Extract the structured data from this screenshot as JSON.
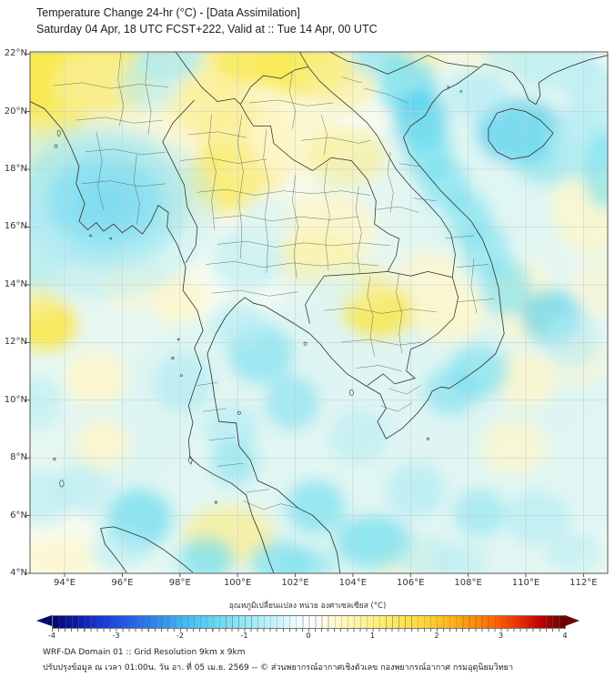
{
  "header": {
    "title": "Temperature Change 24-hr (°C) - [Data Assimilation]",
    "subtitle": "Saturday 04 Apr, 18 UTC FCST+222, Valid at :: Tue 14 Apr, 00 UTC"
  },
  "map": {
    "extent": {
      "lon_min": 92.8,
      "lon_max": 112.84,
      "lat_min": 4.0,
      "lat_max": 22.07
    },
    "lon_ticks": [
      94,
      96,
      98,
      100,
      102,
      104,
      106,
      108,
      110,
      112
    ],
    "lat_ticks": [
      4,
      6,
      8,
      10,
      12,
      14,
      16,
      18,
      20,
      22
    ],
    "lon_suffix": "°E",
    "lat_suffix": "°N",
    "grid_color": "#c3cfce",
    "base_color": "#f6fbf1",
    "palette": {
      "py": "#fdf7cd",
      "y2": "#f9ef97",
      "y3": "#f8e94e",
      "y4": "#f2d72e",
      "pc": "#dcf5f2",
      "c2": "#b4ecf3",
      "c3": "#72dff0",
      "c4": "#3ac8ec",
      "b1": "#1fa2ee",
      "b2": "#0c74e4"
    },
    "anomaly_features": [
      [
        97.0,
        19.5,
        5.5,
        3.6,
        "py",
        0.75
      ],
      [
        104.0,
        8.0,
        10.0,
        5.5,
        "pc",
        0.8
      ],
      [
        108.0,
        14.0,
        6.5,
        6.0,
        "pc",
        0.65
      ],
      [
        95.0,
        11.0,
        4.0,
        4.5,
        "pc",
        0.6
      ],
      [
        110.0,
        19.0,
        4.0,
        3.5,
        "pc",
        0.7
      ],
      [
        94.9,
        21.5,
        2.3,
        1.4,
        "y3",
        0.9
      ],
      [
        93.2,
        21.2,
        1.2,
        1.4,
        "y3",
        0.85
      ],
      [
        93.6,
        20.1,
        1.3,
        1.0,
        "y3",
        0.8
      ],
      [
        96.4,
        21.9,
        1.5,
        0.9,
        "y3",
        0.8
      ],
      [
        95.3,
        20.9,
        1.7,
        1.2,
        "y2",
        0.8
      ],
      [
        93.1,
        18.9,
        0.9,
        1.1,
        "y2",
        0.5
      ],
      [
        99.3,
        21.4,
        1.5,
        1.0,
        "y2",
        0.75
      ],
      [
        100.7,
        21.8,
        1.6,
        0.9,
        "y3",
        0.7
      ],
      [
        102.3,
        21.5,
        1.7,
        1.0,
        "y3",
        0.75
      ],
      [
        103.6,
        20.9,
        1.2,
        0.9,
        "y2",
        0.6
      ],
      [
        98.9,
        20.1,
        1.3,
        0.9,
        "y2",
        0.7
      ],
      [
        100.2,
        19.2,
        1.6,
        1.2,
        "y2",
        0.8
      ],
      [
        99.7,
        17.7,
        1.4,
        1.2,
        "y3",
        0.7
      ],
      [
        100.7,
        18.3,
        1.3,
        1.0,
        "y2",
        0.7
      ],
      [
        102.0,
        19.0,
        1.6,
        1.2,
        "py",
        0.85
      ],
      [
        103.8,
        18.4,
        1.4,
        1.0,
        "y2",
        0.65
      ],
      [
        103.0,
        15.9,
        1.8,
        1.3,
        "py",
        0.95
      ],
      [
        102.8,
        14.9,
        1.4,
        0.9,
        "y2",
        0.5
      ],
      [
        104.9,
        13.05,
        1.3,
        0.95,
        "y3",
        0.85
      ],
      [
        104.4,
        13.9,
        1.1,
        0.8,
        "y2",
        0.6
      ],
      [
        93.35,
        12.6,
        1.15,
        0.95,
        "y3",
        0.9
      ],
      [
        92.9,
        13.7,
        0.9,
        1.0,
        "y2",
        0.6
      ],
      [
        97.9,
        13.5,
        0.95,
        0.85,
        "py",
        0.9
      ],
      [
        95.1,
        10.75,
        1.05,
        0.95,
        "py",
        0.95
      ],
      [
        95.3,
        8.5,
        0.95,
        0.85,
        "py",
        0.9
      ],
      [
        99.7,
        5.3,
        1.6,
        1.05,
        "y2",
        0.8
      ],
      [
        107.3,
        13.1,
        1.3,
        1.1,
        "py",
        0.9
      ],
      [
        106.6,
        14.3,
        1.1,
        0.9,
        "py",
        0.75
      ],
      [
        109.9,
        13.4,
        1.1,
        1.4,
        "py",
        0.8
      ],
      [
        110.0,
        10.7,
        1.1,
        0.95,
        "py",
        0.85
      ],
      [
        109.6,
        8.4,
        1.15,
        0.95,
        "py",
        0.8
      ],
      [
        112.3,
        16.7,
        1.4,
        1.6,
        "py",
        0.85
      ],
      [
        106.1,
        21.9,
        1.1,
        0.7,
        "y2",
        0.6
      ],
      [
        108.9,
        22.0,
        1.4,
        0.6,
        "py",
        0.7
      ],
      [
        96.2,
        13.9,
        0.85,
        0.75,
        "py",
        0.7
      ],
      [
        93.8,
        4.5,
        1.3,
        0.8,
        "py",
        0.75
      ],
      [
        105.8,
        4.4,
        1.2,
        0.7,
        "py",
        0.6
      ],
      [
        111.9,
        11.4,
        0.9,
        0.9,
        "py",
        0.6
      ],
      [
        112.5,
        13.9,
        0.9,
        1.0,
        "py",
        0.6
      ],
      [
        95.45,
        16.85,
        0.55,
        0.42,
        "b2",
        0.8
      ],
      [
        95.45,
        16.85,
        1.15,
        0.9,
        "b1",
        0.75
      ],
      [
        95.4,
        16.9,
        2.0,
        1.55,
        "c4",
        0.7
      ],
      [
        95.3,
        16.9,
        3.0,
        2.3,
        "c3",
        0.55
      ],
      [
        95.1,
        16.6,
        4.2,
        3.1,
        "c2",
        0.45
      ],
      [
        97.6,
        21.9,
        1.2,
        0.9,
        "c2",
        0.85
      ],
      [
        96.9,
        20.9,
        1.0,
        0.9,
        "c2",
        0.6
      ],
      [
        104.9,
        21.95,
        0.95,
        0.7,
        "c3",
        0.6
      ],
      [
        105.9,
        20.9,
        1.05,
        1.0,
        "c3",
        0.75
      ],
      [
        106.35,
        19.7,
        0.95,
        1.05,
        "c4",
        0.6
      ],
      [
        106.6,
        18.6,
        0.85,
        1.05,
        "c3",
        0.7
      ],
      [
        107.2,
        17.4,
        0.85,
        1.0,
        "c3",
        0.6
      ],
      [
        107.95,
        16.3,
        0.85,
        0.95,
        "c3",
        0.6
      ],
      [
        108.6,
        15.2,
        0.85,
        0.95,
        "c3",
        0.55
      ],
      [
        109.3,
        13.9,
        0.9,
        1.0,
        "c3",
        0.6
      ],
      [
        109.8,
        19.3,
        1.55,
        1.15,
        "c4",
        0.6
      ],
      [
        110.7,
        18.4,
        1.15,
        0.95,
        "c3",
        0.5
      ],
      [
        111.9,
        18.9,
        1.1,
        1.3,
        "c2",
        0.75
      ],
      [
        112.7,
        18.0,
        0.7,
        1.4,
        "c3",
        0.6
      ],
      [
        108.3,
        20.6,
        1.05,
        0.85,
        "c2",
        0.75
      ],
      [
        111.1,
        21.6,
        1.6,
        0.9,
        "c2",
        0.65
      ],
      [
        112.4,
        20.4,
        1.0,
        1.2,
        "c2",
        0.6
      ],
      [
        109.3,
        21.9,
        0.8,
        0.5,
        "c2",
        0.6
      ],
      [
        110.9,
        12.9,
        1.05,
        0.95,
        "c4",
        0.55
      ],
      [
        111.6,
        12.1,
        0.95,
        0.95,
        "c2",
        0.6
      ],
      [
        108.35,
        11.0,
        1.05,
        0.95,
        "c3",
        0.6
      ],
      [
        107.4,
        10.3,
        0.95,
        0.85,
        "c3",
        0.55
      ],
      [
        106.2,
        6.9,
        1.05,
        0.95,
        "c2",
        0.75
      ],
      [
        104.7,
        5.1,
        1.35,
        0.95,
        "c3",
        0.7
      ],
      [
        102.7,
        6.3,
        1.05,
        0.95,
        "c3",
        0.65
      ],
      [
        101.5,
        4.4,
        1.05,
        0.75,
        "c3",
        0.65
      ],
      [
        98.9,
        4.5,
        0.95,
        0.75,
        "c3",
        0.7
      ],
      [
        96.6,
        5.9,
        1.15,
        1.05,
        "c3",
        0.75
      ],
      [
        95.9,
        4.8,
        0.95,
        0.75,
        "c2",
        0.65
      ],
      [
        102.5,
        4.3,
        0.9,
        0.6,
        "c3",
        0.5
      ],
      [
        100.8,
        11.6,
        1.15,
        1.05,
        "c3",
        0.6
      ],
      [
        101.9,
        9.9,
        0.95,
        0.95,
        "c3",
        0.55
      ],
      [
        100.0,
        12.6,
        0.95,
        0.85,
        "c2",
        0.65
      ],
      [
        99.8,
        9.0,
        0.95,
        0.85,
        "c2",
        0.75
      ],
      [
        99.9,
        7.8,
        0.85,
        0.75,
        "c3",
        0.5
      ],
      [
        98.1,
        10.6,
        1.05,
        1.05,
        "c2",
        0.75
      ],
      [
        100.35,
        14.9,
        1.25,
        1.15,
        "c2",
        0.6
      ],
      [
        101.0,
        16.2,
        0.95,
        0.95,
        "pc",
        0.8
      ],
      [
        93.0,
        15.0,
        0.95,
        1.15,
        "c2",
        0.65
      ],
      [
        93.0,
        9.9,
        0.95,
        0.95,
        "c2",
        0.55
      ],
      [
        93.2,
        6.6,
        1.05,
        0.95,
        "c2",
        0.65
      ],
      [
        94.6,
        6.9,
        0.95,
        0.85,
        "c2",
        0.55
      ],
      [
        104.2,
        8.7,
        1.05,
        0.95,
        "c2",
        0.55
      ],
      [
        106.6,
        4.5,
        1.05,
        0.75,
        "c2",
        0.55
      ],
      [
        108.4,
        6.1,
        0.95,
        0.85,
        "c3",
        0.45
      ],
      [
        110.4,
        5.9,
        1.15,
        0.95,
        "c2",
        0.65
      ],
      [
        111.8,
        4.6,
        1.05,
        0.75,
        "c2",
        0.55
      ],
      [
        107.8,
        4.4,
        0.9,
        0.6,
        "c2",
        0.5
      ],
      [
        103.5,
        13.9,
        0.8,
        0.6,
        "pc",
        0.7
      ],
      [
        106.8,
        16.0,
        0.7,
        0.8,
        "pc",
        0.7
      ]
    ]
  },
  "colorbar": {
    "label": "อุณหภูมิเปลี่ยนแปลง หน่วย องศาเซลเซียส (°C)",
    "ticks": [
      "-4",
      "-3",
      "-2",
      "-1",
      "0",
      "1",
      "2",
      "3",
      "4"
    ],
    "stops": [
      [
        "#050570",
        0
      ],
      [
        "#0d1bb0",
        5
      ],
      [
        "#1c42dc",
        11
      ],
      [
        "#2a77f0",
        18
      ],
      [
        "#3eb4f2",
        25
      ],
      [
        "#62d4f2",
        31
      ],
      [
        "#92e6f6",
        37
      ],
      [
        "#c3f2f9",
        43
      ],
      [
        "#ecfbfd",
        47.5
      ],
      [
        "#ffffff",
        50
      ],
      [
        "#fffcea",
        52.5
      ],
      [
        "#fff6b2",
        58
      ],
      [
        "#ffec6c",
        65
      ],
      [
        "#ffd83b",
        72
      ],
      [
        "#ffab10",
        79
      ],
      [
        "#ff6e00",
        85.5
      ],
      [
        "#ef2f00",
        91
      ],
      [
        "#c30000",
        95
      ],
      [
        "#8a0000",
        98
      ],
      [
        "#6d0000",
        100
      ]
    ]
  },
  "footer": {
    "line1": "WRF-DA Domain 01 :: Grid Resolution 9km x 9km",
    "line2": "ปรับปรุงข้อมูล ณ เวลา 01:00น. วัน อา. ที่ 05 เม.ย. 2569 -- © ส่วนพยากรณ์อากาศเชิงตัวเลข กองพยากรณ์อากาศ กรมอุตุนิยมวิทยา"
  }
}
